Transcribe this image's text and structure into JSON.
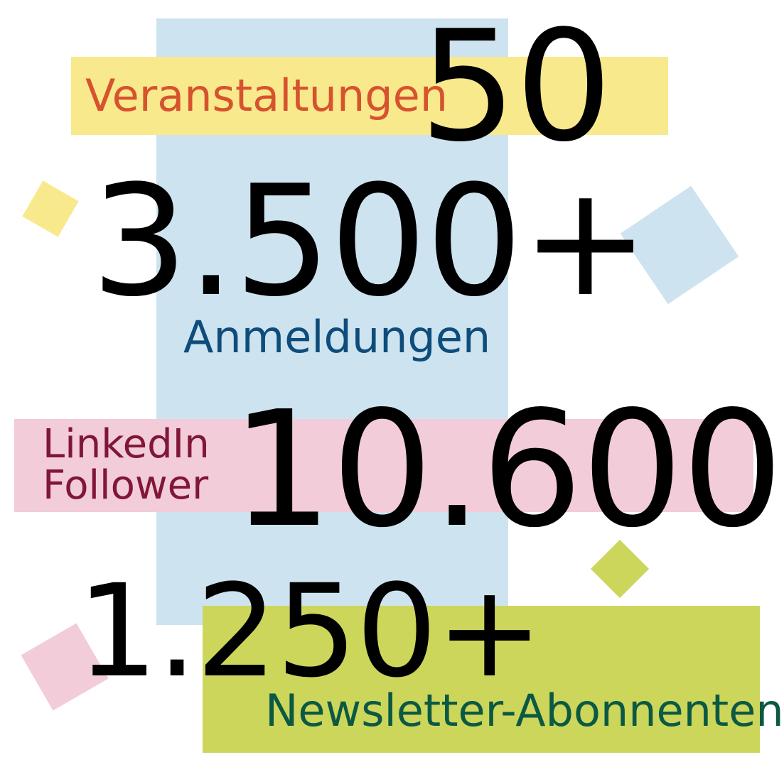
{
  "stats": {
    "events": {
      "value": "50",
      "label": "Veranstaltungen"
    },
    "registrations": {
      "value": "3.500+",
      "label": "Anmeldungen"
    },
    "linkedin": {
      "value": "10.600",
      "label_line1": "LinkedIn",
      "label_line2": "Follower"
    },
    "newsletter": {
      "value": "1.250+",
      "label": "Newsletter-Abonnenten"
    }
  },
  "colors": {
    "yellow": "#f9e98d",
    "blue": "#cde3ef",
    "pink": "#f2ccd8",
    "green": "#ccd65b",
    "events_label": "#d6532e",
    "registrations_label": "#0e4c7b",
    "linkedin_label": "#801638",
    "newsletter_label": "#0b5943"
  }
}
